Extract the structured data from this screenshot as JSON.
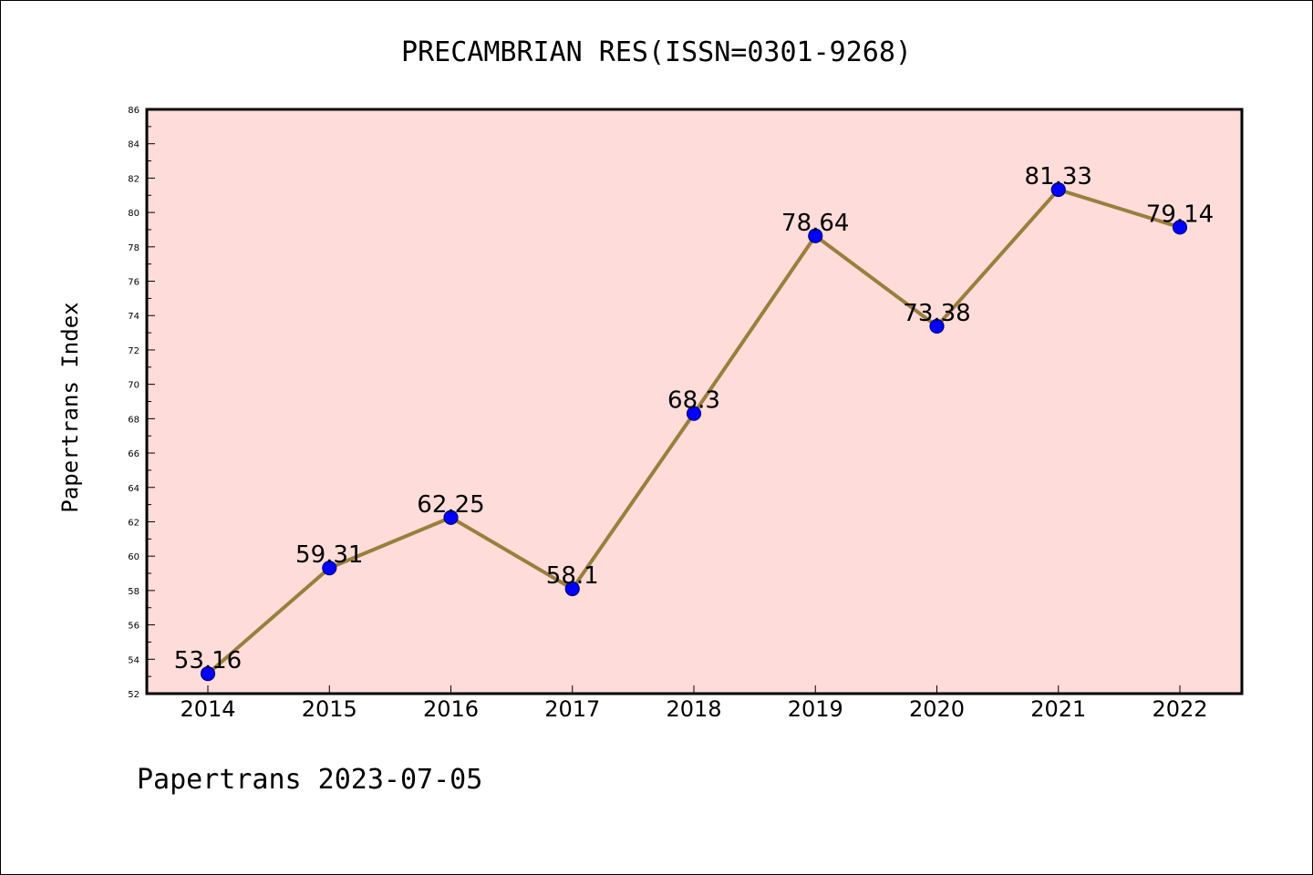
{
  "header": {
    "title": "PRECAMBRIAN RES(ISSN=0301-9268)"
  },
  "footer": {
    "text": "Papertrans 2023-07-05"
  },
  "chart_data": {
    "type": "line",
    "title": "PRECAMBRIAN RES(ISSN=0301-9268)",
    "xlabel": "",
    "ylabel": "Papertrans Index",
    "categories": [
      "2014",
      "2015",
      "2016",
      "2017",
      "2018",
      "2019",
      "2020",
      "2021",
      "2022"
    ],
    "series": [
      {
        "values": [
          53.16,
          59.31,
          62.25,
          58.1,
          68.3,
          78.64,
          73.38,
          81.33,
          79.14
        ]
      }
    ],
    "data_labels": [
      "53.16",
      "59.31",
      "62.25",
      "58.1",
      "68.3",
      "78.64",
      "73.38",
      "81.33",
      "79.14"
    ],
    "ylim": [
      52,
      86
    ],
    "yticks": [
      52,
      54,
      56,
      58,
      60,
      62,
      64,
      66,
      68,
      70,
      72,
      74,
      76,
      78,
      80,
      82,
      84,
      86
    ],
    "grid": false,
    "legend": "none",
    "colors": {
      "plot_background": "#fddcda",
      "line": "#9a7f3c",
      "marker_fill": "#0000ff",
      "marker_edge": "#00007a",
      "axis": "#000000"
    }
  }
}
